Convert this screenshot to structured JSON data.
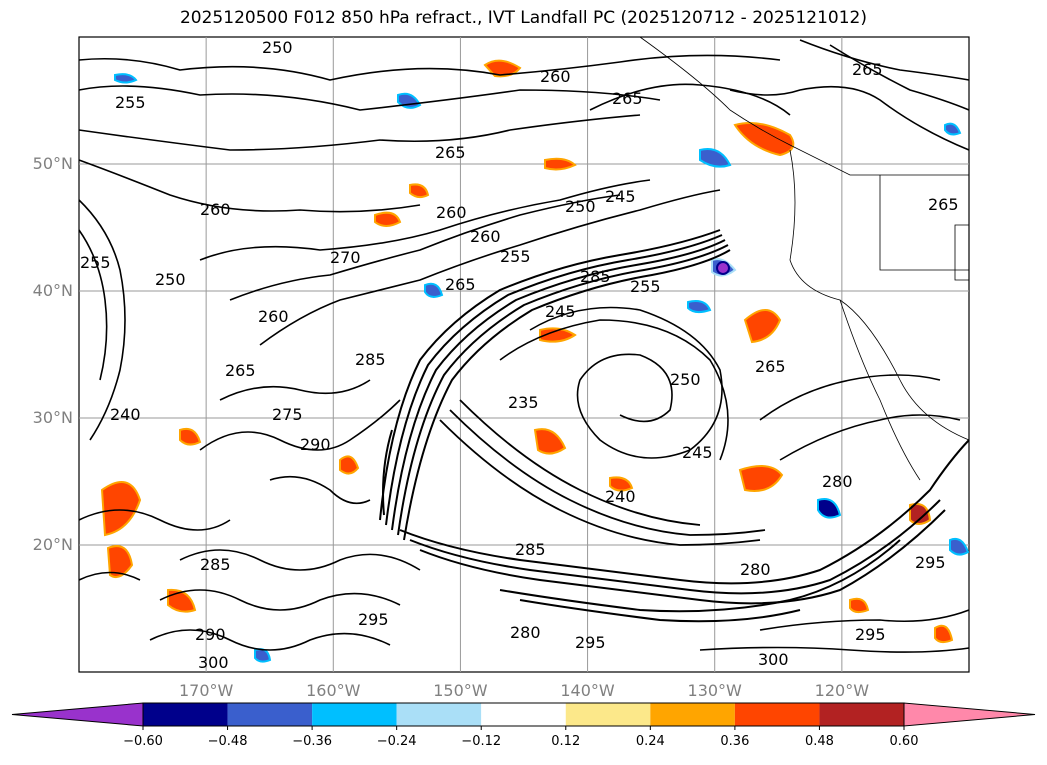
{
  "title": "2025120500 F012 850 hPa refract., IVT Landfall PC (2025120712 - 2025121012)",
  "map": {
    "lon_range": [
      -180,
      -110
    ],
    "lat_range": [
      10,
      60
    ],
    "lat_ticks": [
      {
        "value": 50,
        "label": "50°N"
      },
      {
        "value": 40,
        "label": "40°N"
      },
      {
        "value": 30,
        "label": "30°N"
      },
      {
        "value": 20,
        "label": "20°N"
      }
    ],
    "lon_ticks": [
      {
        "value": -170,
        "label": "170°W"
      },
      {
        "value": -160,
        "label": "160°W"
      },
      {
        "value": -150,
        "label": "150°W"
      },
      {
        "value": -140,
        "label": "140°W"
      },
      {
        "value": -130,
        "label": "130°W"
      },
      {
        "value": -120,
        "label": "120°W"
      }
    ],
    "gridlines": true,
    "contour_labels": [
      "260",
      "265",
      "255",
      "250",
      "245",
      "270",
      "285",
      "290",
      "275",
      "240",
      "280",
      "295",
      "300",
      "235"
    ]
  },
  "colorbar": {
    "ticks": [
      "−0.60",
      "−0.48",
      "−0.36",
      "−0.24",
      "−0.12",
      "0.12",
      "0.24",
      "0.36",
      "0.48",
      "0.60"
    ],
    "colors": [
      "#9932cc",
      "#00008b",
      "#3a5fcd",
      "#00bfff",
      "#aadff7",
      "#ffffff",
      "#fce88a",
      "#ffa500",
      "#ff4500",
      "#b22222",
      "#ff88aa"
    ],
    "extend": "both"
  }
}
